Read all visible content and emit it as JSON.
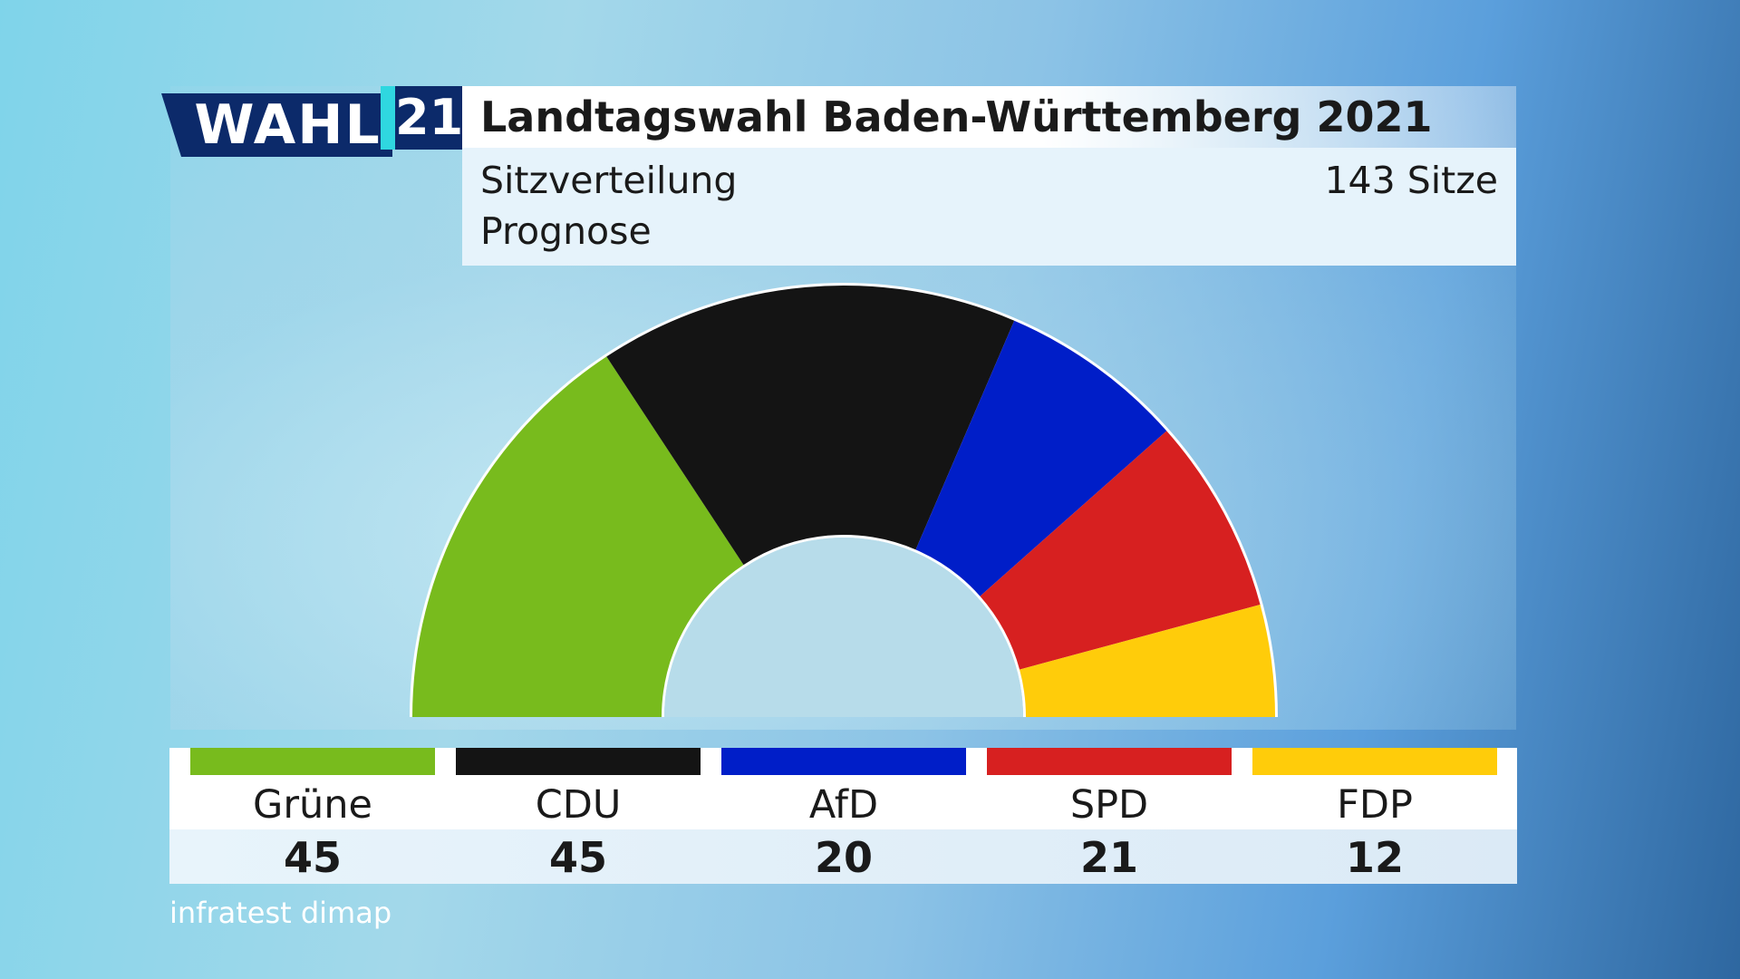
{
  "logo": {
    "word": "WAHL",
    "year": "21"
  },
  "header": {
    "title": "Landtagswahl Baden-Württemberg 2021",
    "subtitle_line1": "Sitzverteilung",
    "subtitle_line2": "Prognose",
    "seats_total": "143 Sitze"
  },
  "source": "infratest dimap",
  "chart_data": {
    "type": "pie",
    "variant": "parliament-half-donut",
    "title": "Landtagswahl Baden-Württemberg 2021",
    "subtitle": "Sitzverteilung Prognose",
    "total": 143,
    "total_label": "143 Sitze",
    "categories": [
      "Grüne",
      "CDU",
      "AfD",
      "SPD",
      "FDP"
    ],
    "values": [
      45,
      45,
      20,
      21,
      12
    ],
    "colors": [
      "#78bb1d",
      "#141414",
      "#001ec8",
      "#d72020",
      "#ffcc0a"
    ]
  }
}
